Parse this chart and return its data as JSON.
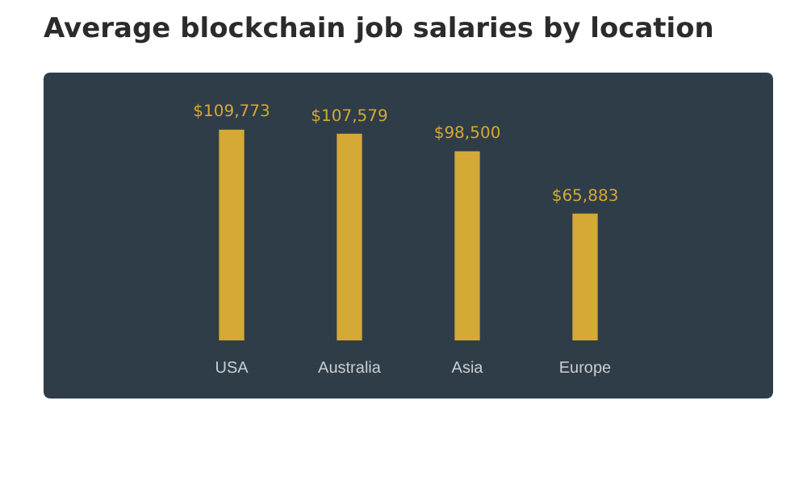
{
  "chart_data": {
    "type": "bar",
    "title": "Average blockchain job salaries by location",
    "categories": [
      "USA",
      "Australia",
      "Asia",
      "Europe"
    ],
    "values": [
      109773,
      107579,
      98500,
      65883
    ],
    "value_labels": [
      "$109,773",
      "$107,579",
      "$98,500",
      "$65,883"
    ],
    "color": "#d4a935",
    "grid": false,
    "legend": false
  }
}
